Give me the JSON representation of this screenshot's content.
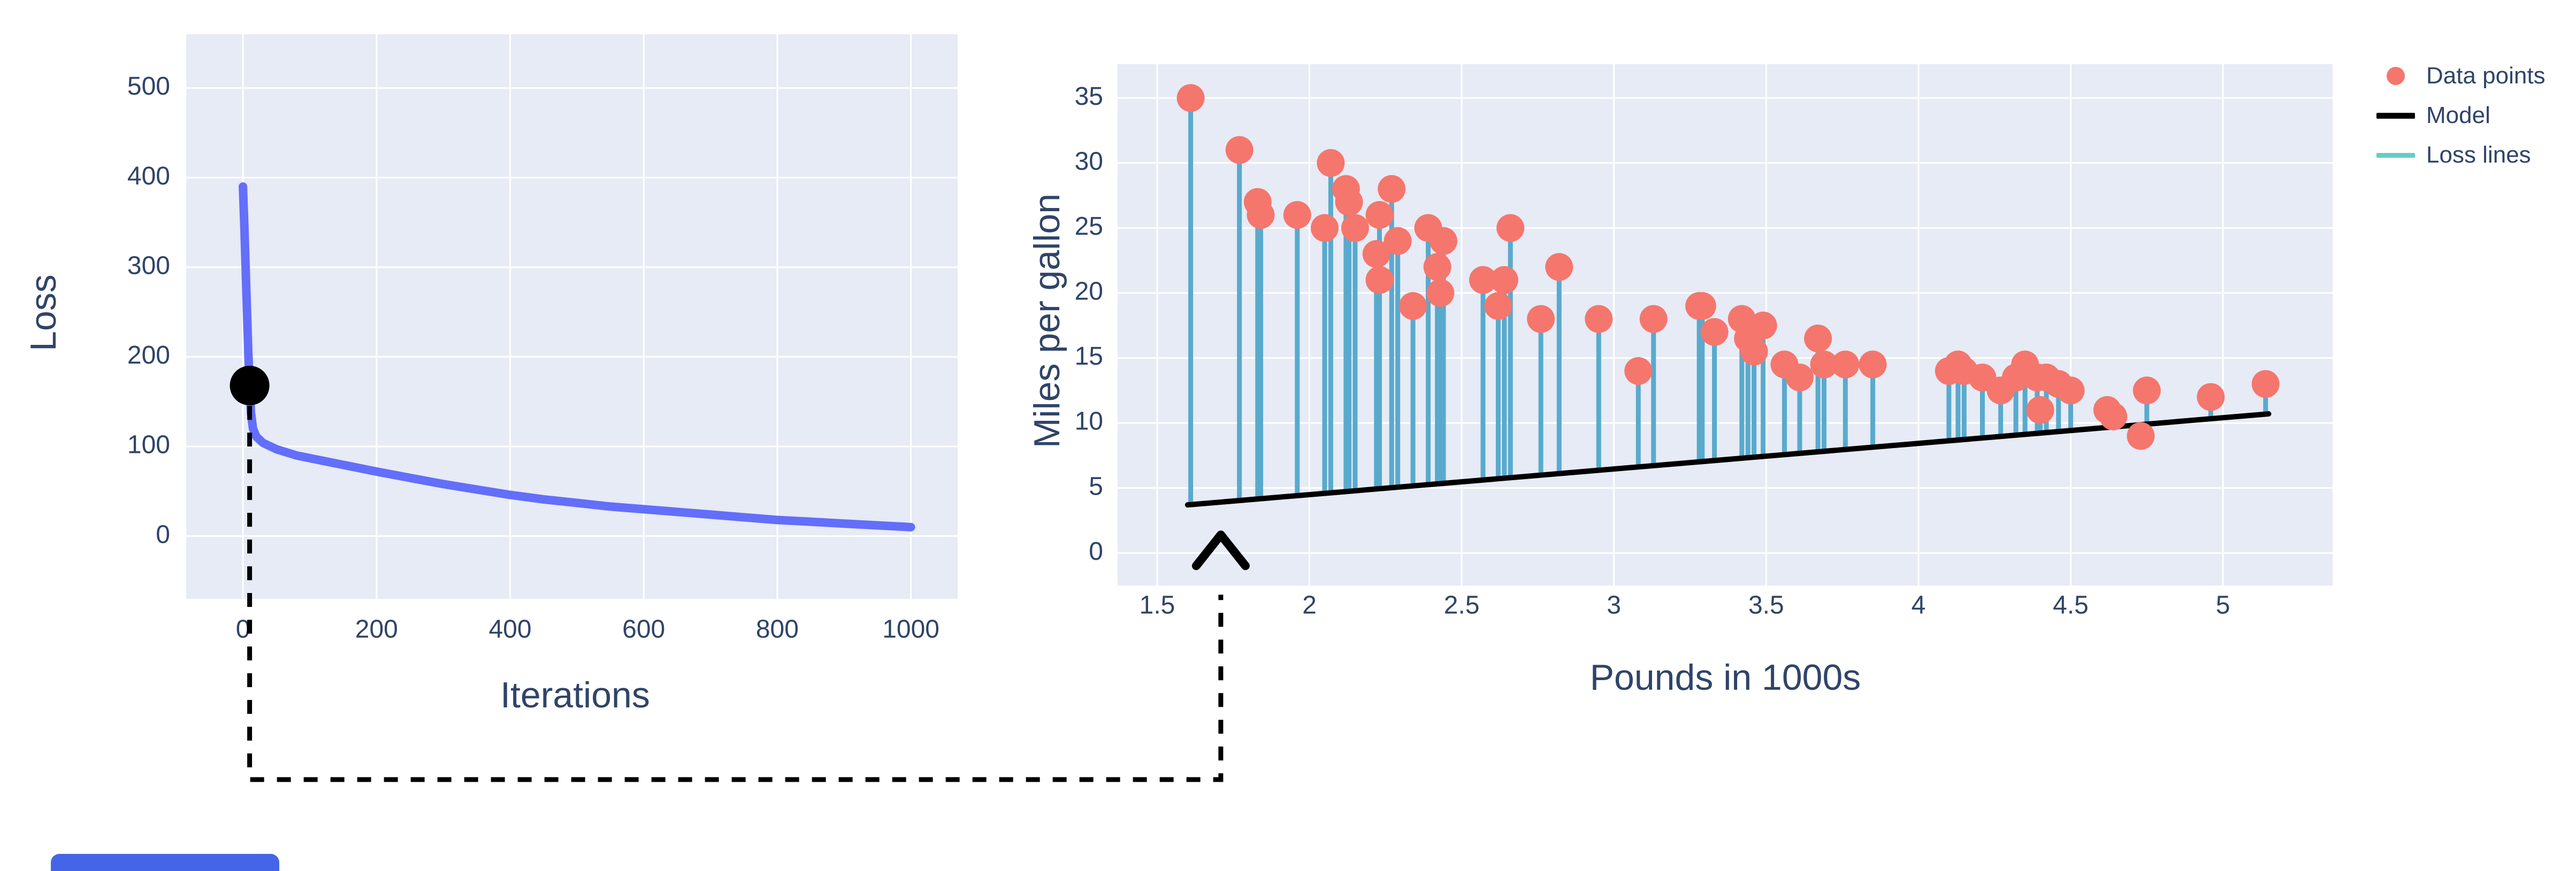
{
  "figure": {
    "background": "#ffffff",
    "text_color": "#2f4468",
    "grid_color": "#ffffff",
    "plot_bg": "#e6ebf5"
  },
  "chart_data": [
    {
      "id": "loss-curve-chart",
      "type": "line",
      "title": "",
      "xlabel": "Iterations",
      "ylabel": "Loss",
      "x_ticks": [
        0,
        200,
        400,
        600,
        800,
        1000
      ],
      "x_tick_labels": [
        "0",
        "200",
        "400",
        "600",
        "800",
        "1000"
      ],
      "y_ticks": [
        0,
        100,
        200,
        300,
        400,
        500
      ],
      "y_tick_labels": [
        "0",
        "100",
        "200",
        "300",
        "400",
        "500"
      ],
      "xlim": [
        -85,
        1070
      ],
      "ylim": [
        -70,
        560
      ],
      "grid": true,
      "legend_position": "none",
      "line_color": "#636efa",
      "series": [
        {
          "name": "Loss",
          "points": [
            [
              0,
              390
            ],
            [
              2,
              348
            ],
            [
              4,
              300
            ],
            [
              6,
              252
            ],
            [
              8,
              205
            ],
            [
              10,
              168
            ],
            [
              12,
              138
            ],
            [
              15,
              120
            ],
            [
              20,
              111
            ],
            [
              30,
              104
            ],
            [
              50,
              97
            ],
            [
              80,
              90
            ],
            [
              120,
              84
            ],
            [
              160,
              78
            ],
            [
              200,
              72
            ],
            [
              250,
              65
            ],
            [
              300,
              58
            ],
            [
              350,
              52
            ],
            [
              400,
              46
            ],
            [
              450,
              41
            ],
            [
              500,
              37
            ],
            [
              550,
              33
            ],
            [
              600,
              30
            ],
            [
              650,
              27
            ],
            [
              700,
              24
            ],
            [
              750,
              21
            ],
            [
              800,
              18
            ],
            [
              850,
              16
            ],
            [
              900,
              14
            ],
            [
              950,
              12
            ],
            [
              1000,
              10
            ]
          ]
        }
      ],
      "marker": {
        "x": 10,
        "y": 168,
        "color": "#000000"
      }
    },
    {
      "id": "model-fit-chart",
      "type": "scatter",
      "title": "",
      "xlabel": "Pounds in 1000s",
      "ylabel": "Miles per gallon",
      "x_ticks": [
        1.5,
        2,
        2.5,
        3,
        3.5,
        4,
        4.5,
        5
      ],
      "x_tick_labels": [
        "1.5",
        "2",
        "2.5",
        "3",
        "3.5",
        "4",
        "4.5",
        "5"
      ],
      "y_ticks": [
        0,
        5,
        10,
        15,
        20,
        25,
        30,
        35
      ],
      "y_tick_labels": [
        "0",
        "5",
        "10",
        "15",
        "20",
        "25",
        "30",
        "35"
      ],
      "xlim": [
        1.37,
        5.36
      ],
      "ylim": [
        -2.5,
        37.6
      ],
      "grid": true,
      "legend_position": "right-top",
      "point_color": "#f5766d",
      "loss_line_color": "#58aacd",
      "model_color": "#000000",
      "model_line": {
        "x0": 1.6,
        "y0": 3.7,
        "x1": 5.15,
        "y1": 10.7
      },
      "points": [
        [
          1.61,
          35
        ],
        [
          1.77,
          31
        ],
        [
          1.83,
          27
        ],
        [
          1.84,
          26
        ],
        [
          1.96,
          26
        ],
        [
          2.05,
          25
        ],
        [
          2.07,
          30
        ],
        [
          2.12,
          28
        ],
        [
          2.13,
          27
        ],
        [
          2.15,
          25
        ],
        [
          2.22,
          23
        ],
        [
          2.23,
          26
        ],
        [
          2.23,
          21
        ],
        [
          2.27,
          28
        ],
        [
          2.29,
          24
        ],
        [
          2.34,
          19
        ],
        [
          2.39,
          25
        ],
        [
          2.44,
          24
        ],
        [
          2.42,
          22
        ],
        [
          2.43,
          20
        ],
        [
          2.57,
          21
        ],
        [
          2.62,
          19
        ],
        [
          2.64,
          21
        ],
        [
          2.66,
          25
        ],
        [
          2.76,
          18
        ],
        [
          2.82,
          22
        ],
        [
          2.95,
          18
        ],
        [
          3.08,
          14
        ],
        [
          3.13,
          18
        ],
        [
          3.28,
          19
        ],
        [
          3.29,
          19
        ],
        [
          3.33,
          17
        ],
        [
          3.42,
          18
        ],
        [
          3.44,
          16.5
        ],
        [
          3.46,
          15.5
        ],
        [
          3.49,
          17.5
        ],
        [
          3.56,
          14.5
        ],
        [
          3.61,
          13.5
        ],
        [
          3.67,
          16.5
        ],
        [
          3.69,
          14.5
        ],
        [
          3.76,
          14.5
        ],
        [
          3.85,
          14.5
        ],
        [
          4.1,
          14
        ],
        [
          4.13,
          14.5
        ],
        [
          4.15,
          14
        ],
        [
          4.21,
          13.5
        ],
        [
          4.27,
          12.5
        ],
        [
          4.32,
          13.5
        ],
        [
          4.35,
          14.5
        ],
        [
          4.39,
          13.5
        ],
        [
          4.4,
          11
        ],
        [
          4.42,
          13.5
        ],
        [
          4.46,
          13
        ],
        [
          4.5,
          12.5
        ],
        [
          4.62,
          11
        ],
        [
          4.64,
          10.5
        ],
        [
          4.73,
          9
        ],
        [
          4.75,
          12.5
        ],
        [
          4.96,
          12
        ],
        [
          5.14,
          13
        ]
      ],
      "legend": [
        {
          "label": "Data points",
          "swatch": "dot",
          "color": "#f5766d"
        },
        {
          "label": "Model",
          "swatch": "line",
          "color": "#000000"
        },
        {
          "label": "Loss lines",
          "swatch": "line",
          "color": "#66cdc5"
        }
      ]
    }
  ],
  "annotation": {
    "style": "dashed",
    "color": "#000000"
  },
  "footer_bar": {
    "color": "#4565e8"
  }
}
